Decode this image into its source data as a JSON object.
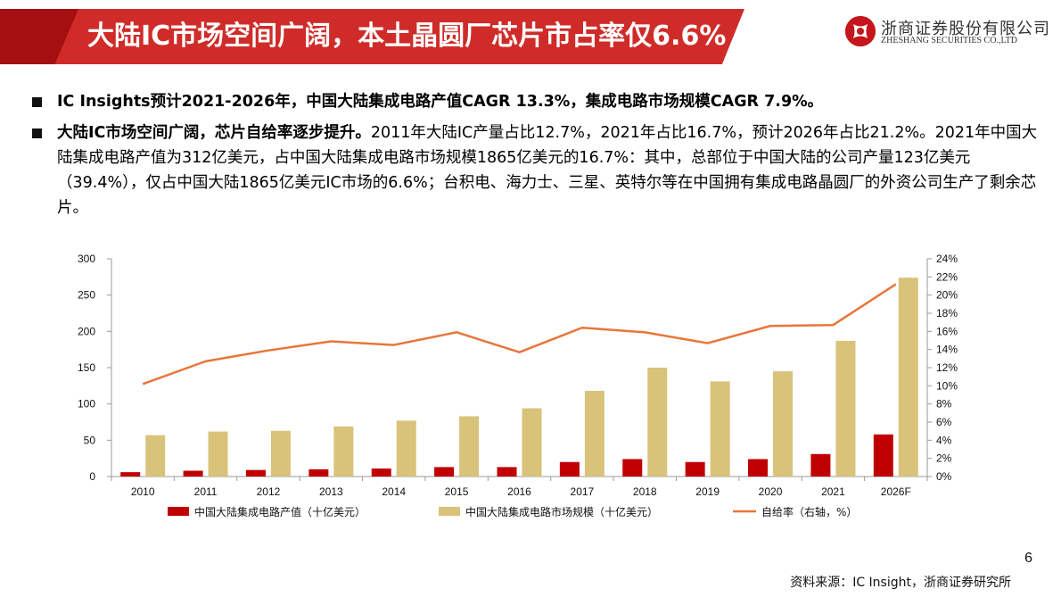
{
  "header": {
    "title": "大陆IC市场空间广阔，本土晶圆厂芯片市占率仅6.6%",
    "logo_cn": "浙商证券股份有限公司",
    "logo_en": "ZHESHANG SECURITIES CO.,LTD"
  },
  "bullets": [
    {
      "bold": "IC Insights预计2021-2026年，中国大陆集成电路产值CAGR 13.3%，集成电路市场规模CAGR 7.9%。",
      "text": ""
    },
    {
      "bold": "大陆IC市场空间广阔，芯片自给率逐步提升。",
      "text": "2011年大陆IC产量占比12.7%，2021年占比16.7%，预计2026年占比21.2%。2021年中国大陆集成电路产值为312亿美元，占中国大陆集成电路市场规模1865亿美元的16.7%：其中，总部位于中国大陆的公司产量123亿美元（39.4%），仅占中国大陆1865亿美元IC市场的6.6%；台积电、海力士、三星、英特尔等在中国拥有集成电路晶圆厂的外资公司生产了剩余芯片。"
    }
  ],
  "chart_data": {
    "type": "bar",
    "categories": [
      "2010",
      "2011",
      "2012",
      "2013",
      "2014",
      "2015",
      "2016",
      "2017",
      "2018",
      "2019",
      "2020",
      "2021",
      "2026F"
    ],
    "series": [
      {
        "name": "中国大陆集成电路产值（十亿美元）",
        "type": "bar",
        "axis": "left",
        "color": "#c00000",
        "values": [
          6,
          8,
          9,
          10,
          11,
          13,
          13,
          20,
          24,
          20,
          24,
          31,
          58
        ]
      },
      {
        "name": "中国大陆集成电路市场规模（十亿美元）",
        "type": "bar",
        "axis": "left",
        "color": "#d9c27a",
        "values": [
          57,
          62,
          63,
          69,
          77,
          83,
          94,
          118,
          150,
          131,
          145,
          187,
          274
        ]
      },
      {
        "name": "自给率（右轴，%）",
        "type": "line",
        "axis": "right",
        "color": "#e8763a",
        "values": [
          10.2,
          12.7,
          13.9,
          14.9,
          14.5,
          15.9,
          13.7,
          16.4,
          15.9,
          14.7,
          16.6,
          16.7,
          21.2
        ]
      }
    ],
    "y_left": {
      "min": 0,
      "max": 300,
      "ticks": [
        "0",
        "50",
        "100",
        "150",
        "200",
        "250",
        "300"
      ]
    },
    "y_right": {
      "min": 0,
      "max": 24,
      "ticks": [
        "0%",
        "2%",
        "4%",
        "6%",
        "8%",
        "10%",
        "12%",
        "14%",
        "16%",
        "18%",
        "20%",
        "22%",
        "24%"
      ]
    },
    "grid": false,
    "legend_position": "bottom"
  },
  "page_number": "6",
  "source": "资料来源：IC Insight，浙商证券研究所"
}
